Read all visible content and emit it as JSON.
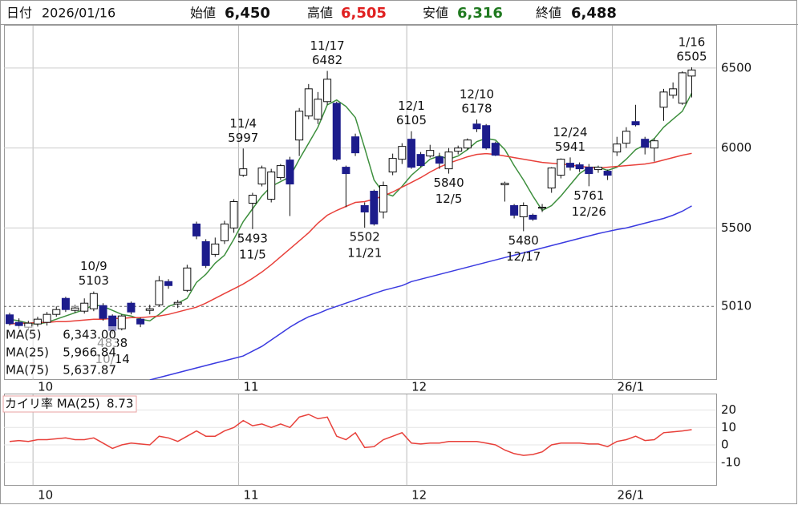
{
  "header": {
    "date_label": "日付",
    "date": "2026/01/16",
    "open_label": "始値",
    "open": "6,450",
    "high_label": "高値",
    "high": "6,505",
    "low_label": "安値",
    "low": "6,316",
    "close_label": "終値",
    "close": "6,488"
  },
  "chart_data": [
    {
      "type": "candlestick",
      "categories": [
        null,
        null,
        null,
        "10",
        null,
        null,
        null,
        null,
        null,
        null,
        null,
        null,
        null,
        null,
        null,
        null,
        null,
        null,
        null,
        null,
        null,
        null,
        null,
        null,
        null,
        "11",
        null,
        null,
        null,
        null,
        null,
        null,
        null,
        null,
        null,
        null,
        null,
        null,
        null,
        null,
        null,
        null,
        null,
        "12",
        null,
        null,
        null,
        null,
        null,
        null,
        null,
        null,
        null,
        null,
        null,
        null,
        null,
        null,
        null,
        null,
        null,
        null,
        null,
        null,
        null,
        "26/1",
        null,
        null,
        null,
        null,
        null,
        null,
        null,
        null
      ],
      "open": [
        4957,
        4910,
        4880,
        4900,
        4910,
        4960,
        5060,
        4985,
        4980,
        4995,
        5015,
        4950,
        4870,
        5030,
        4930,
        4985,
        5020,
        5165,
        5025,
        5110,
        5525,
        5415,
        5335,
        5420,
        5500,
        5830,
        5655,
        5775,
        5680,
        5815,
        5925,
        6050,
        6200,
        6180,
        6290,
        6280,
        5880,
        6070,
        5640,
        5730,
        5600,
        5850,
        5930,
        6055,
        5960,
        5950,
        5945,
        5870,
        5980,
        6000,
        6150,
        6140,
        6030,
        5770,
        5640,
        5570,
        5580,
        5625,
        5750,
        5830,
        5905,
        5895,
        5880,
        5865,
        5855,
        5975,
        6030,
        6165,
        6055,
        6000,
        6255,
        6330,
        6280,
        6450
      ],
      "high": [
        4970,
        4935,
        4920,
        4945,
        4975,
        5010,
        5070,
        5020,
        5060,
        5103,
        5030,
        4960,
        4960,
        5040,
        4940,
        5020,
        5200,
        5180,
        5050,
        5270,
        5540,
        5430,
        5440,
        5545,
        5680,
        5997,
        5720,
        5890,
        5870,
        5900,
        5945,
        6250,
        6400,
        6350,
        6482,
        6290,
        5890,
        6090,
        5660,
        5740,
        5790,
        5965,
        6030,
        6105,
        5975,
        6020,
        5970,
        6000,
        6015,
        6060,
        6178,
        6150,
        6040,
        5790,
        5650,
        5660,
        5590,
        5650,
        5880,
        5935,
        5941,
        5910,
        5900,
        5890,
        5865,
        6070,
        6130,
        6270,
        6070,
        6060,
        6370,
        6410,
        6480,
        6505
      ],
      "low": [
        4890,
        4870,
        4860,
        4880,
        4890,
        4945,
        4975,
        4970,
        4965,
        4980,
        4920,
        4838,
        4860,
        4960,
        4880,
        4960,
        5010,
        5120,
        5000,
        5100,
        5430,
        5250,
        5320,
        5400,
        5470,
        5820,
        5493,
        5760,
        5660,
        5800,
        5575,
        5950,
        6180,
        6150,
        6270,
        5920,
        5630,
        5950,
        5502,
        5515,
        5560,
        5830,
        5900,
        5870,
        5880,
        5940,
        5870,
        5840,
        5960,
        5990,
        6100,
        5990,
        5950,
        5665,
        5560,
        5480,
        5545,
        5600,
        5720,
        5810,
        5860,
        5850,
        5761,
        5845,
        5800,
        5950,
        6000,
        6135,
        5960,
        5915,
        6170,
        6310,
        6270,
        6316
      ],
      "close": [
        4902,
        4890,
        4905,
        4930,
        4960,
        4990,
        4990,
        5000,
        5030,
        5090,
        4935,
        4860,
        4950,
        4975,
        4900,
        4995,
        5170,
        5140,
        5035,
        5250,
        5450,
        5265,
        5400,
        5525,
        5665,
        5870,
        5705,
        5875,
        5850,
        5890,
        5775,
        6230,
        6370,
        6305,
        6430,
        5930,
        5840,
        5970,
        5600,
        5525,
        5765,
        5935,
        6010,
        5880,
        5890,
        5985,
        5905,
        5975,
        6000,
        6050,
        6120,
        6000,
        5955,
        5780,
        5580,
        5640,
        5555,
        5630,
        5875,
        5930,
        5880,
        5870,
        5840,
        5880,
        5830,
        6025,
        6105,
        6145,
        6005,
        6045,
        6350,
        6370,
        6470,
        6488
      ],
      "up_color": "#ffffff",
      "down_color": "#1c1c8c",
      "ylim": [
        4550,
        6770
      ],
      "yticks": [
        5500,
        6000,
        6500
      ],
      "grid": true,
      "ref_line": {
        "value": 5010,
        "color": "#e0661a"
      },
      "series": [
        {
          "name": "MA(5)",
          "legend_label": "6,343.00",
          "color": "#3d8f3d",
          "values": [
            4930,
            4920,
            4905,
            4900,
            4910,
            4930,
            4950,
            4970,
            4990,
            5020,
            5010,
            4985,
            4960,
            4950,
            4930,
            4920,
            4960,
            5010,
            5030,
            5060,
            5160,
            5210,
            5280,
            5330,
            5430,
            5540,
            5620,
            5700,
            5760,
            5790,
            5820,
            5930,
            6030,
            6130,
            6270,
            6300,
            6260,
            6190,
            6000,
            5800,
            5720,
            5700,
            5760,
            5830,
            5880,
            5930,
            5950,
            5930,
            5950,
            5990,
            6040,
            6060,
            6050,
            5990,
            5890,
            5800,
            5700,
            5610,
            5640,
            5700,
            5770,
            5840,
            5880,
            5880,
            5860,
            5880,
            5930,
            5990,
            6020,
            6060,
            6130,
            6180,
            6230,
            6343
          ]
        },
        {
          "name": "MA(25)",
          "legend_label": "5,966.84",
          "color": "#e8403a",
          "values": [
            4900,
            4905,
            4905,
            4910,
            4910,
            4915,
            4915,
            4920,
            4925,
            4930,
            4930,
            4935,
            4935,
            4940,
            4940,
            4945,
            4950,
            4960,
            4975,
            4990,
            5005,
            5030,
            5060,
            5090,
            5120,
            5150,
            5185,
            5225,
            5270,
            5320,
            5370,
            5420,
            5470,
            5530,
            5580,
            5610,
            5635,
            5660,
            5665,
            5680,
            5700,
            5725,
            5755,
            5785,
            5815,
            5850,
            5880,
            5905,
            5925,
            5945,
            5960,
            5965,
            5960,
            5950,
            5940,
            5930,
            5920,
            5910,
            5905,
            5900,
            5895,
            5885,
            5880,
            5875,
            5880,
            5885,
            5890,
            5895,
            5900,
            5910,
            5925,
            5940,
            5955,
            5966.84
          ]
        },
        {
          "name": "MA(75)",
          "legend_label": "5,637.87",
          "color": "#3a3ae0",
          "values": [
            null,
            null,
            null,
            null,
            null,
            null,
            null,
            null,
            null,
            null,
            null,
            null,
            null,
            null,
            null,
            4550,
            4565,
            4580,
            4595,
            4610,
            4625,
            4640,
            4655,
            4670,
            4685,
            4700,
            4730,
            4760,
            4800,
            4840,
            4880,
            4915,
            4945,
            4965,
            4990,
            5010,
            5030,
            5050,
            5070,
            5090,
            5110,
            5125,
            5140,
            5165,
            5180,
            5195,
            5210,
            5225,
            5240,
            5255,
            5270,
            5285,
            5300,
            5315,
            5330,
            5345,
            5360,
            5375,
            5390,
            5405,
            5420,
            5435,
            5450,
            5465,
            5478,
            5490,
            5500,
            5515,
            5530,
            5545,
            5560,
            5580,
            5605,
            5637.87
          ]
        }
      ],
      "annotations": [
        {
          "date": "10/9",
          "value": 5103
        },
        {
          "date": "10/14",
          "value": 4838
        },
        {
          "date": "11/4",
          "value": 5997
        },
        {
          "date": "11/5",
          "value": 5493
        },
        {
          "date": "11/17",
          "value": 6482
        },
        {
          "date": "11/21",
          "value": 5502
        },
        {
          "date": "12/1",
          "value": 6105
        },
        {
          "date": "12/5",
          "value": 5840
        },
        {
          "date": "12/10",
          "value": 6178
        },
        {
          "date": "12/17",
          "value": 5480
        },
        {
          "date": "12/24",
          "value": 5941
        },
        {
          "date": "12/26",
          "value": 5761
        },
        {
          "date": "1/16",
          "value": 6505
        }
      ]
    },
    {
      "type": "line",
      "title": "カイリ率 MA(25)",
      "value_label": "8.73",
      "color": "#e8403a",
      "categories": [
        null,
        null,
        null,
        "10",
        null,
        null,
        null,
        null,
        null,
        null,
        null,
        null,
        null,
        null,
        null,
        null,
        null,
        null,
        null,
        null,
        null,
        null,
        null,
        null,
        null,
        "11",
        null,
        null,
        null,
        null,
        null,
        null,
        null,
        null,
        null,
        null,
        null,
        null,
        null,
        null,
        null,
        null,
        null,
        "12",
        null,
        null,
        null,
        null,
        null,
        null,
        null,
        null,
        null,
        null,
        null,
        null,
        null,
        null,
        null,
        null,
        null,
        null,
        null,
        null,
        null,
        "26/1",
        null,
        null,
        null,
        null,
        null,
        null,
        null,
        null
      ],
      "values": [
        2,
        2.5,
        2,
        3,
        3,
        3.5,
        4,
        3,
        3,
        4,
        1,
        -2,
        0,
        1,
        0.5,
        0,
        5,
        4,
        2,
        5,
        8,
        5,
        5,
        8,
        10,
        14,
        11,
        12,
        10,
        12,
        10,
        16,
        17.5,
        15,
        16,
        5,
        3,
        7,
        -1.5,
        -1,
        3,
        5,
        7,
        1,
        0.5,
        1,
        1,
        2,
        2,
        2,
        2,
        1,
        0,
        -3,
        -5,
        -6,
        -5.5,
        -4,
        0,
        1,
        1,
        1,
        0.5,
        0.5,
        -1,
        2,
        3,
        5,
        2.5,
        3,
        7,
        7.5,
        8,
        8.73
      ],
      "ylim": [
        -23,
        29
      ],
      "yticks": [
        -10,
        0,
        10,
        20
      ],
      "grid": true
    }
  ]
}
